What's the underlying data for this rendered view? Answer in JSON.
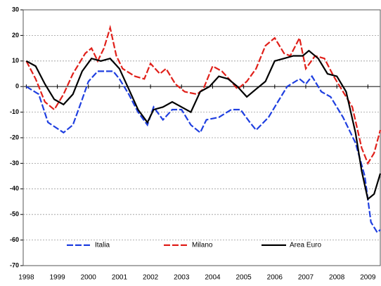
{
  "chart_data": {
    "type": "line",
    "xlim": [
      1997.9,
      2009.4
    ],
    "xticks": [
      1998,
      1999,
      2000,
      2001,
      2002,
      2003,
      2004,
      2005,
      2006,
      2007,
      2008,
      2009
    ],
    "ylim": [
      -70,
      30
    ],
    "yticks": [
      -70,
      -60,
      -50,
      -40,
      -30,
      -20,
      -10,
      0,
      10,
      20,
      30
    ],
    "grid": true,
    "legend": "bottom",
    "series": [
      {
        "name": "Italia",
        "color": "#1f3fe0",
        "dash": true,
        "x": [
          1998,
          1998.4,
          1998.7,
          1999.2,
          1999.5,
          1999.8,
          2000.0,
          2000.3,
          2000.8,
          2001.0,
          2001.3,
          2001.6,
          2001.9,
          2002.1,
          2002.4,
          2002.7,
          2003.0,
          2003.3,
          2003.6,
          2003.8,
          2004.2,
          2004.6,
          2004.9,
          2005.2,
          2005.4,
          2005.8,
          2006.1,
          2006.4,
          2006.8,
          2007.0,
          2007.2,
          2007.5,
          2007.8,
          2008.2,
          2008.6,
          2008.9,
          2009.1,
          2009.3,
          2009.4
        ],
        "values": [
          0,
          -3,
          -14,
          -18,
          -15,
          -5,
          2,
          6,
          6,
          3,
          -3,
          -10,
          -15,
          -8,
          -13,
          -9,
          -9,
          -15,
          -18,
          -13,
          -12,
          -9,
          -9,
          -14,
          -17,
          -12,
          -6,
          0,
          3,
          1,
          4,
          -2,
          -4,
          -12,
          -22,
          -35,
          -53,
          -57,
          -56
        ]
      },
      {
        "name": "Milano",
        "color": "#e0201a",
        "dash": true,
        "x": [
          1998,
          1998.3,
          1998.6,
          1998.9,
          1999.2,
          1999.5,
          1999.9,
          2000.1,
          2000.3,
          2000.5,
          2000.7,
          2000.9,
          2001.1,
          2001.5,
          2001.8,
          2002.0,
          2002.3,
          2002.5,
          2002.8,
          2003.1,
          2003.5,
          2003.7,
          2004.0,
          2004.3,
          2004.6,
          2004.8,
          2005.1,
          2005.4,
          2005.7,
          2006.0,
          2006.3,
          2006.5,
          2006.8,
          2007.0,
          2007.3,
          2007.6,
          2007.9,
          2008.2,
          2008.5,
          2008.8,
          2009.0,
          2009.2,
          2009.4
        ],
        "values": [
          10,
          3,
          -6,
          -9,
          -3,
          5,
          13,
          15,
          10,
          15,
          23,
          12,
          7,
          4,
          3,
          9,
          5,
          7,
          1,
          -2,
          -3,
          -1,
          8,
          6,
          2,
          -1,
          2,
          7,
          16,
          19,
          13,
          12,
          19,
          7,
          12,
          11,
          4,
          -2,
          -8,
          -24,
          -30,
          -26,
          -17
        ]
      },
      {
        "name": "Area Euro",
        "color": "#000000",
        "dash": false,
        "x": [
          1998,
          1998.3,
          1998.6,
          1998.9,
          1999.2,
          1999.5,
          1999.8,
          2000.1,
          2000.4,
          2000.7,
          2001.0,
          2001.3,
          2001.6,
          2001.9,
          2002.1,
          2002.4,
          2002.7,
          2003.0,
          2003.3,
          2003.6,
          2003.9,
          2004.2,
          2004.5,
          2004.8,
          2005.1,
          2005.4,
          2005.7,
          2006.0,
          2006.3,
          2006.6,
          2006.9,
          2007.1,
          2007.4,
          2007.7,
          2008.0,
          2008.3,
          2008.6,
          2008.8,
          2009.0,
          2009.2,
          2009.4
        ],
        "values": [
          10,
          8,
          1,
          -5,
          -7,
          -3,
          6,
          11,
          10,
          11,
          7,
          -1,
          -9,
          -14,
          -9,
          -8,
          -6,
          -8,
          -10,
          -2,
          0,
          4,
          3,
          0,
          -4,
          -1,
          2,
          10,
          11,
          12,
          12,
          14,
          11,
          5,
          4,
          -2,
          -18,
          -33,
          -44,
          -42,
          -34
        ]
      }
    ]
  }
}
